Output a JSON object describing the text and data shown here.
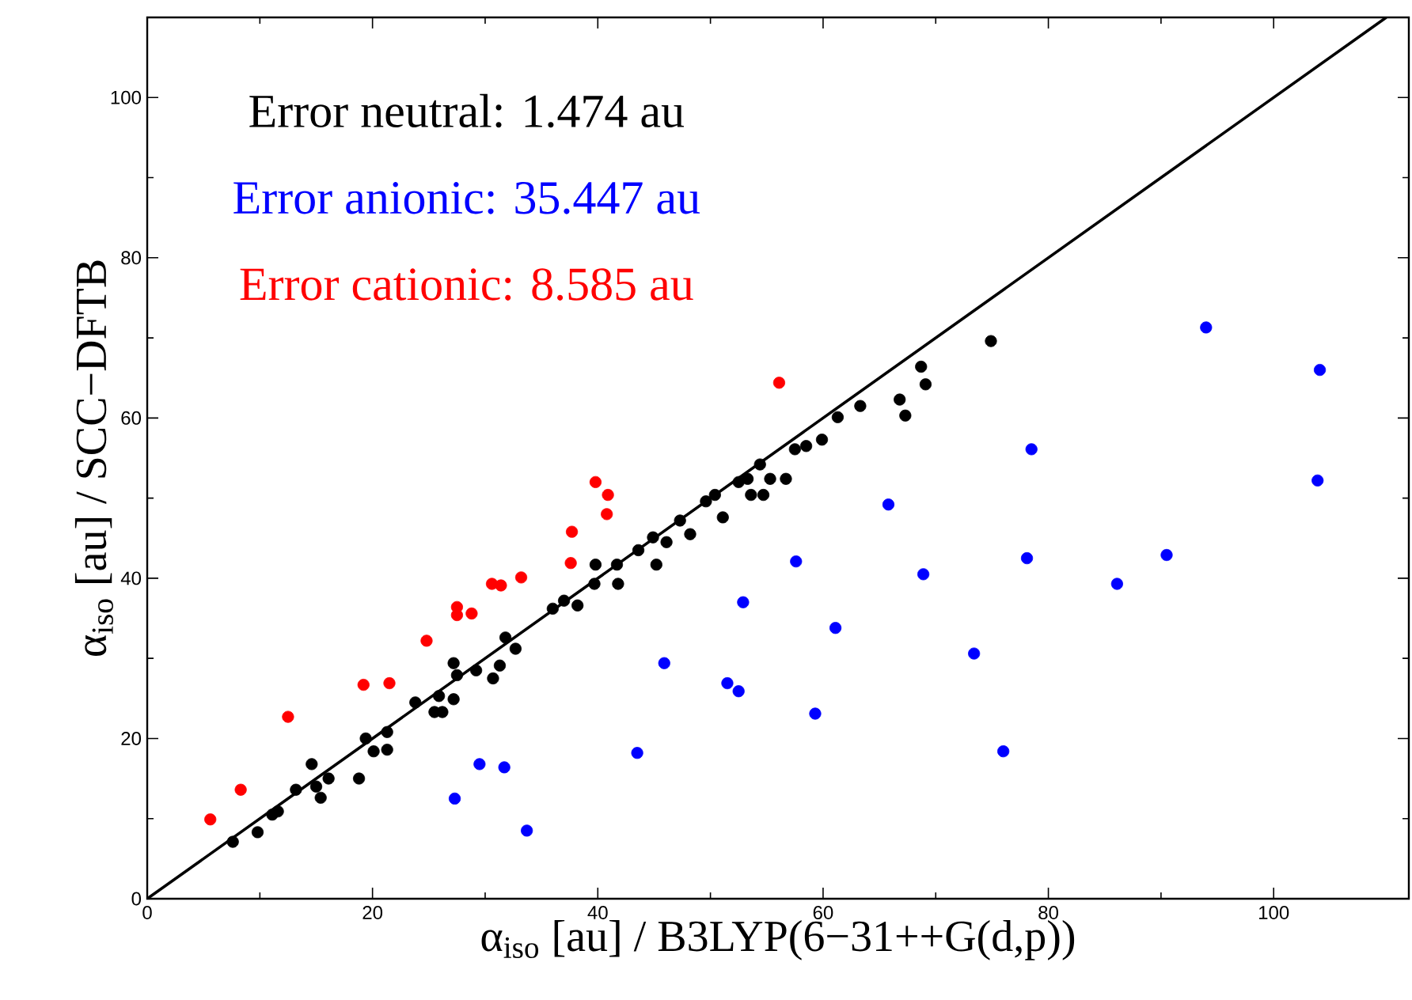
{
  "chart_data": {
    "type": "scatter",
    "xlabel": "α$_{iso}$ [au] / B3LYP(6−31++G(d,p))",
    "ylabel": "α$_{iso}$ [au] / SCC−DFTB",
    "xlim": [
      0,
      112
    ],
    "ylim": [
      0,
      110
    ],
    "xticks": [
      0,
      20,
      40,
      60,
      80,
      100
    ],
    "yticks": [
      0,
      20,
      40,
      60,
      80,
      100
    ],
    "marker": "circle",
    "legend": false,
    "grid": false,
    "annotations": [
      "Error neutral: 1.474 au",
      "Error anionic: 35.447 au",
      "Error cationic: 8.585 au"
    ],
    "series": [
      {
        "color": "#000000",
        "x": [
          7.6,
          9.8,
          11.1,
          11.6,
          13.2,
          14.6,
          15.0,
          15.4,
          16.1,
          18.8,
          19.4,
          20.1,
          21.3,
          21.3,
          23.8,
          25.5,
          26.2,
          25.9,
          27.2,
          27.2,
          27.5,
          29.2,
          30.7,
          31.3,
          31.8,
          32.7,
          36.0,
          37.0,
          38.2,
          39.7,
          39.8,
          41.7,
          41.8,
          43.6,
          44.9,
          45.2,
          46.1,
          47.3,
          48.2,
          49.6,
          50.4,
          51.1,
          52.5,
          53.3,
          53.6,
          54.7,
          54.4,
          55.3,
          56.7,
          57.5,
          58.5,
          59.9,
          61.3,
          63.3,
          66.8,
          67.3,
          68.7,
          69.1,
          74.9
        ],
        "values": [
          7.1,
          8.3,
          10.5,
          10.9,
          13.6,
          16.8,
          14.0,
          12.6,
          15.0,
          15.0,
          20.0,
          18.4,
          20.8,
          18.6,
          24.5,
          23.3,
          23.3,
          25.3,
          24.9,
          29.4,
          27.9,
          28.5,
          27.5,
          29.1,
          32.6,
          31.2,
          36.2,
          37.2,
          36.6,
          39.3,
          41.7,
          41.7,
          39.3,
          43.5,
          45.1,
          41.7,
          44.5,
          47.2,
          45.5,
          49.6,
          50.4,
          47.6,
          52.0,
          52.4,
          50.4,
          50.4,
          54.2,
          52.4,
          52.4,
          56.1,
          56.5,
          57.3,
          60.1,
          61.5,
          62.3,
          60.3,
          66.4,
          64.2,
          69.6
        ]
      },
      {
        "color": "#0000ff",
        "x": [
          27.3,
          29.5,
          31.7,
          33.7,
          43.5,
          45.9,
          51.5,
          52.5,
          52.9,
          57.6,
          59.3,
          61.1,
          65.8,
          68.9,
          73.4,
          76.0,
          78.1,
          78.5,
          86.1,
          90.5,
          94.0,
          103.9,
          104.1
        ],
        "values": [
          12.5,
          16.8,
          16.4,
          8.5,
          18.2,
          29.4,
          26.9,
          25.9,
          37.0,
          42.1,
          23.1,
          33.8,
          49.2,
          40.5,
          30.6,
          18.4,
          42.5,
          56.1,
          39.3,
          42.9,
          71.3,
          52.2,
          66.0
        ]
      },
      {
        "color": "#ff0000",
        "x": [
          5.6,
          8.3,
          12.5,
          19.2,
          21.5,
          24.8,
          27.5,
          27.5,
          28.8,
          30.6,
          31.4,
          33.2,
          37.6,
          37.7,
          39.8,
          40.9,
          40.8,
          56.1
        ],
        "values": [
          9.9,
          13.6,
          22.7,
          26.7,
          26.9,
          32.2,
          36.4,
          35.4,
          35.6,
          39.3,
          39.1,
          40.1,
          41.9,
          45.8,
          52.0,
          50.4,
          48.0,
          64.4
        ]
      },
      {
        "type": "line",
        "marker": "none",
        "color": "#000000",
        "x": [
          0,
          110
        ],
        "values": [
          0,
          110
        ]
      }
    ]
  }
}
